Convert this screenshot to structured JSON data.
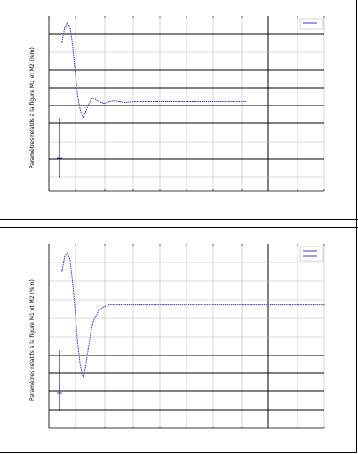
{
  "chart_data": [
    {
      "type": "line",
      "title": "",
      "xlabel": "",
      "ylabel": "Paramètres relatifs à la figure M1 et M2 (%m)",
      "grid": true,
      "legend": "top-right",
      "legend_entries": [
        ""
      ],
      "series": [
        {
          "name": "",
          "color": "#3a3ad0",
          "x": [
            0.0,
            1.0,
            2.0,
            3.0,
            4.0,
            5.0,
            6.0,
            7.0,
            8.0,
            9.0,
            10.0,
            11.0,
            12.0,
            14.0,
            16.0,
            18.0,
            20.0,
            22.0,
            24.0,
            26.0,
            28.0,
            30.0,
            33.0,
            36.0,
            40.0,
            45.0,
            50.0,
            55.0,
            60.0,
            65.0,
            70.0
          ],
          "y": [
            8.5,
            9.3,
            9.6,
            9.4,
            8.4,
            6.8,
            5.4,
            4.6,
            4.2,
            4.5,
            4.9,
            5.2,
            5.3,
            5.1,
            5.0,
            5.1,
            5.15,
            5.1,
            5.05,
            5.08,
            5.1,
            5.1,
            5.1,
            5.1,
            5.1,
            5.1,
            5.1,
            5.1,
            5.1,
            5.1,
            5.1
          ]
        }
      ],
      "xlim": [
        -5,
        100
      ],
      "ylim": [
        0,
        10
      ]
    },
    {
      "type": "line",
      "title": "",
      "xlabel": "",
      "ylabel": "Paramètres relatifs à la figure M1 et M2 (%m)",
      "grid": true,
      "legend": "top-right",
      "legend_entries": [
        "",
        ""
      ],
      "series": [
        {
          "name": "",
          "color": "#3a3ad0",
          "x": [
            0.0,
            1.0,
            2.0,
            3.0,
            4.0,
            5.0,
            6.0,
            7.0,
            8.0,
            9.0,
            10.0,
            11.0,
            12.0,
            14.0,
            16.0,
            18.0,
            20.0,
            22.0,
            25.0,
            30.0,
            40.0,
            50.0,
            60.0,
            70.0,
            80.0,
            90.0,
            100.0
          ],
          "y": [
            8.5,
            9.3,
            9.5,
            9.2,
            8.0,
            6.4,
            4.6,
            3.4,
            2.8,
            3.3,
            4.3,
            5.2,
            5.8,
            6.4,
            6.6,
            6.7,
            6.7,
            6.7,
            6.7,
            6.7,
            6.7,
            6.7,
            6.7,
            6.7,
            6.7,
            6.7,
            6.7
          ]
        }
      ],
      "xlim": [
        -5,
        100
      ],
      "ylim": [
        0,
        10
      ]
    }
  ]
}
